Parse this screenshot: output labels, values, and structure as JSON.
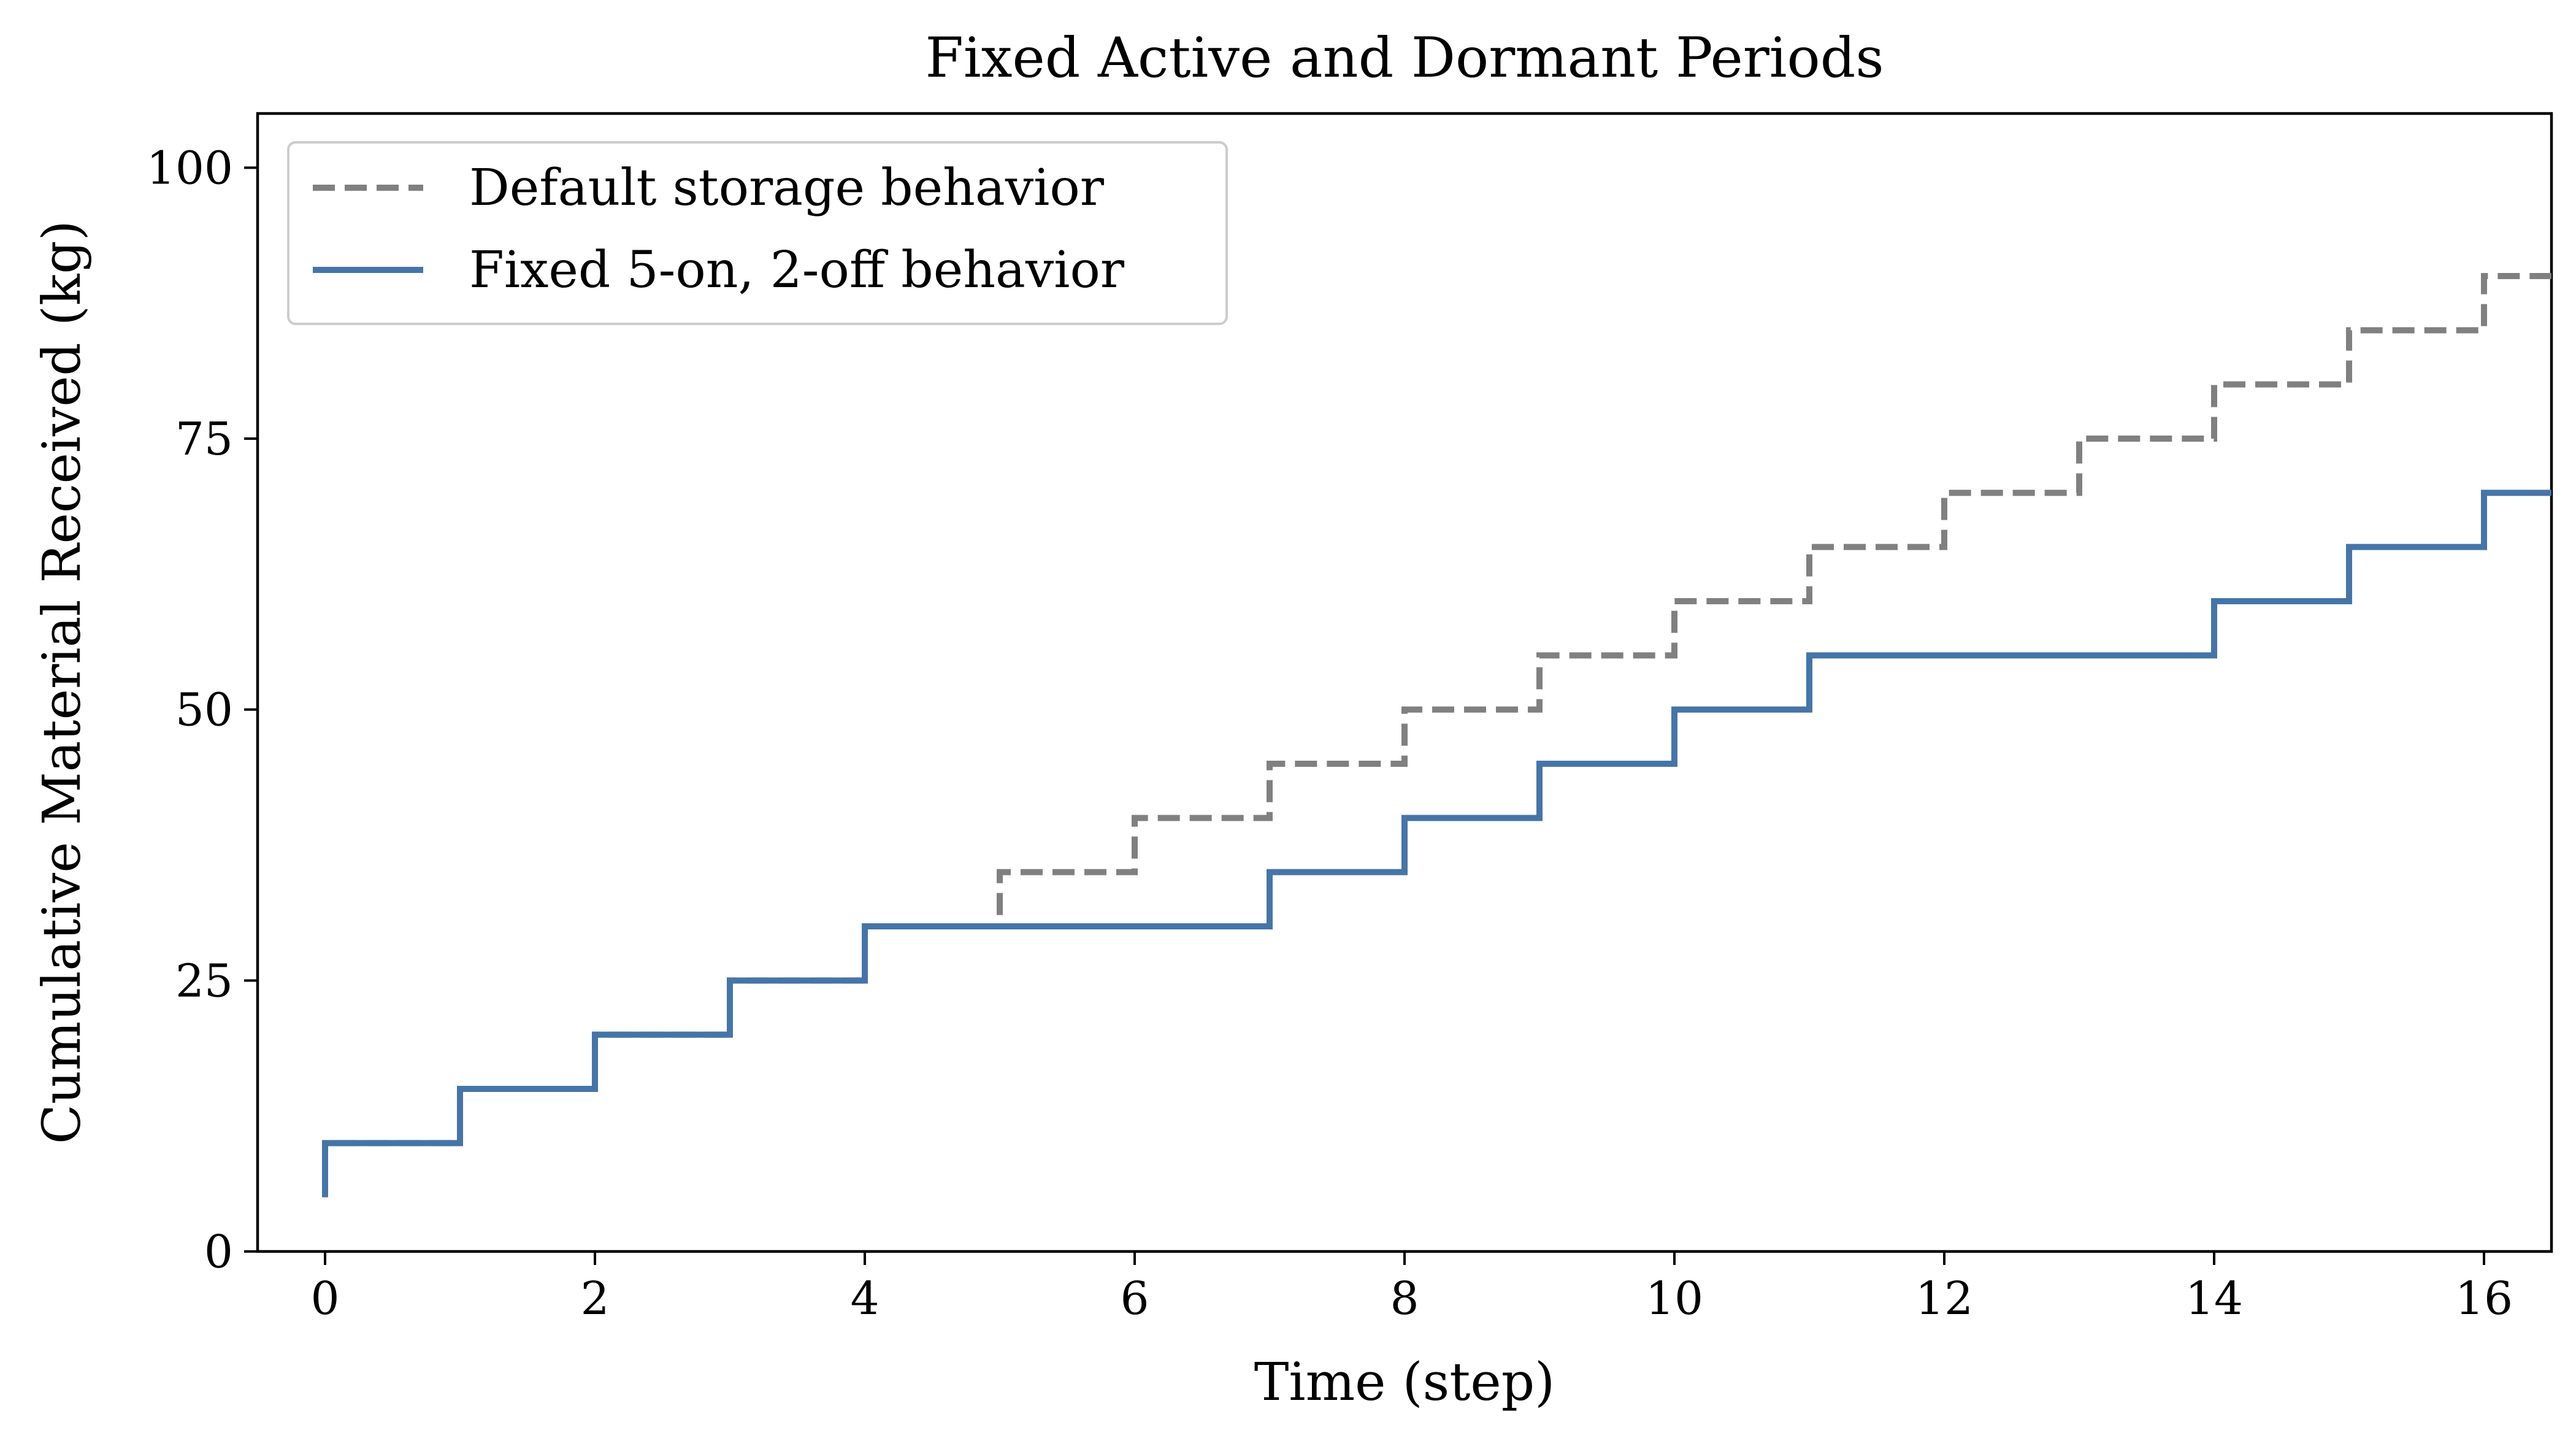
{
  "chart_data": {
    "type": "line",
    "step": "post",
    "title": "Fixed Active and Dormant Periods",
    "xlabel": "Time (step)",
    "ylabel": "Cumulative Material Received (kg)",
    "xlim": [
      -0.5,
      16.5
    ],
    "ylim": [
      0,
      105
    ],
    "xticks": [
      0,
      2,
      4,
      6,
      8,
      10,
      12,
      14,
      16
    ],
    "yticks": [
      0,
      25,
      50,
      75,
      100
    ],
    "grid": false,
    "legend_position": "upper-left",
    "series": [
      {
        "name": "Default storage behavior",
        "color": "#808080",
        "style": "dashed",
        "x": [
          0,
          0,
          1,
          2,
          3,
          4,
          5,
          6,
          7,
          8,
          9,
          10,
          11,
          12,
          13,
          14,
          15,
          16
        ],
        "y": [
          5,
          10,
          15,
          20,
          25,
          30,
          35,
          40,
          45,
          50,
          55,
          60,
          65,
          70,
          75,
          80,
          85,
          90
        ]
      },
      {
        "name": "Fixed 5-on, 2-off behavior",
        "color": "#4575a8",
        "style": "solid",
        "x": [
          0,
          0,
          1,
          2,
          3,
          4,
          5,
          6,
          7,
          8,
          9,
          10,
          11,
          12,
          13,
          14,
          15,
          16
        ],
        "y": [
          5,
          10,
          15,
          20,
          25,
          30,
          30,
          30,
          35,
          40,
          45,
          50,
          55,
          55,
          55,
          60,
          65,
          70
        ]
      }
    ]
  }
}
